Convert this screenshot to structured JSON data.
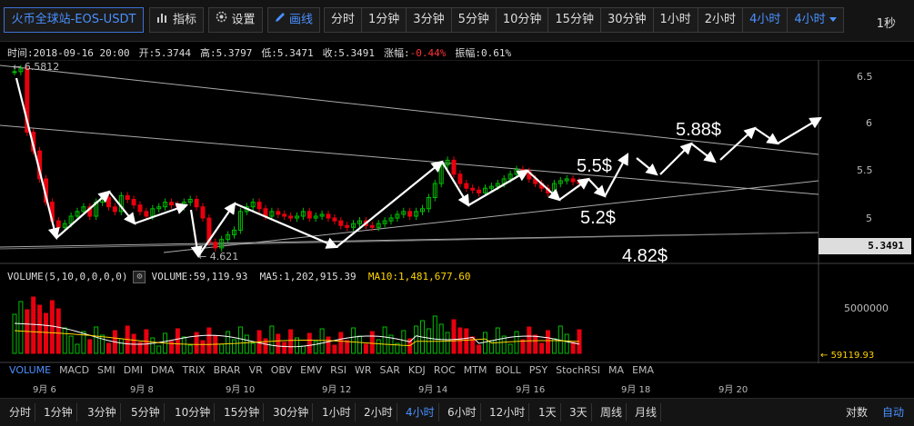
{
  "toolbar": {
    "symbol": "火币全球站-EOS-USDT",
    "indicator": "指标",
    "settings": "设置",
    "draw": "画线",
    "periods": [
      "分时",
      "1分钟",
      "3分钟",
      "5分钟",
      "10分钟",
      "15分钟",
      "30分钟",
      "1小时",
      "2小时",
      "4小时"
    ],
    "active_period": "4小时",
    "dropdown": "4小时",
    "fps": "1秒"
  },
  "info": {
    "time": "时间:2018-09-16 20:00",
    "open": "开:5.3744",
    "high": "高:5.3797",
    "low": "低:5.3471",
    "close": "收:5.3491",
    "change_label": "涨幅:",
    "change_value": "-0.44%",
    "amplitude": "振幅:0.61%"
  },
  "chart": {
    "y_ticks": [
      "6.5",
      "6",
      "5.5",
      "5"
    ],
    "current_price": "5.3491",
    "high_marker": "6.5812",
    "low_marker": "4.621",
    "annotations": [
      "5.88$",
      "5.5$",
      "5.2$",
      "4.82$"
    ],
    "volume_tick": "5000000",
    "volume_last": "59119.93",
    "colors": {
      "up": "#00c000",
      "down": "#e8000e",
      "ma5": "#ffffff",
      "ma10": "#ffd400",
      "line": "#aaaaaa"
    }
  },
  "volume_legend": {
    "title": "VOLUME(5,10,0,0,0,0)",
    "gear_icon": "gear-icon",
    "volume": "VOLUME:59,119.93",
    "ma5": "MA5:1,202,915.39",
    "ma10": "MA10:1,481,677.60"
  },
  "indicator_tabs": [
    "VOLUME",
    "MACD",
    "SMI",
    "DMI",
    "DMA",
    "TRIX",
    "BRAR",
    "VR",
    "OBV",
    "EMV",
    "RSI",
    "WR",
    "SAR",
    "KDJ",
    "ROC",
    "MTM",
    "BOLL",
    "PSY",
    "StochRSI",
    "MA",
    "EMA"
  ],
  "date_axis": [
    "9月 6",
    "9月 8",
    "9月 10",
    "9月 12",
    "9月 14",
    "9月 16",
    "9月 18",
    "9月 20"
  ],
  "bottombar": {
    "periods": [
      "分时",
      "1分钟",
      "3分钟",
      "5分钟",
      "10分钟",
      "15分钟",
      "30分钟",
      "1小时",
      "2小时",
      "4小时",
      "6小时",
      "12小时",
      "1天",
      "3天",
      "周线",
      "月线"
    ],
    "active": "4小时",
    "right": [
      "对数",
      "自动"
    ]
  }
}
